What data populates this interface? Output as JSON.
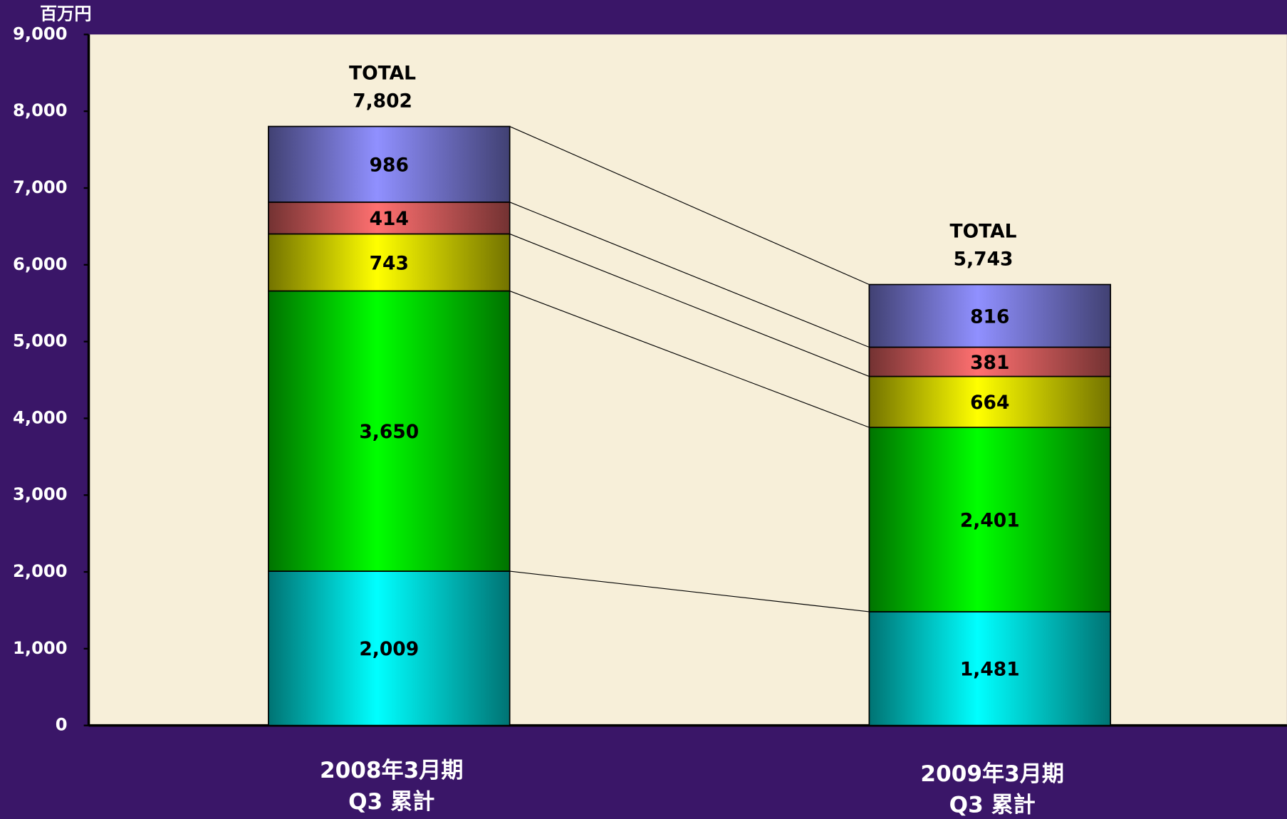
{
  "chart_data": {
    "type": "stacked_bar",
    "y_unit": "百万円",
    "categories": [
      "2008年3月期\nQ3 累計",
      "2009年3月期\nQ3 累計"
    ],
    "series": [
      {
        "color": "#00ffff",
        "values": [
          2009,
          1481
        ],
        "value_labels": [
          "2,009",
          "1,481"
        ]
      },
      {
        "color": "#00ff00",
        "values": [
          3650,
          2401
        ],
        "value_labels": [
          "3,650",
          "2,401"
        ]
      },
      {
        "color": "#ffff00",
        "values": [
          743,
          664
        ],
        "value_labels": [
          "743",
          "664"
        ]
      },
      {
        "color": "#ff7070",
        "values": [
          414,
          381
        ],
        "value_labels": [
          "414",
          "381"
        ]
      },
      {
        "color": "#9090ff",
        "values": [
          986,
          816
        ],
        "value_labels": [
          "986",
          "816"
        ]
      }
    ],
    "total_label": "TOTAL",
    "totals": [
      7802,
      5743
    ],
    "total_labels": [
      "7,802",
      "5,743"
    ],
    "ylim": [
      0,
      9000
    ],
    "yticks": [
      0,
      {
        "value": 1000,
        "label": "1,000"
      },
      {
        "value": 2000,
        "label": "2,000"
      },
      {
        "value": 3000,
        "label": "3,000"
      },
      {
        "value": 4000,
        "label": "4,000"
      },
      {
        "value": 5000,
        "label": "5,000"
      },
      {
        "value": 6000,
        "label": "6,000"
      },
      {
        "value": 7000,
        "label": "7,000"
      },
      {
        "value": 8000,
        "label": "8,000"
      },
      {
        "value": 9000,
        "label": "9,000"
      }
    ],
    "connectors": true
  }
}
